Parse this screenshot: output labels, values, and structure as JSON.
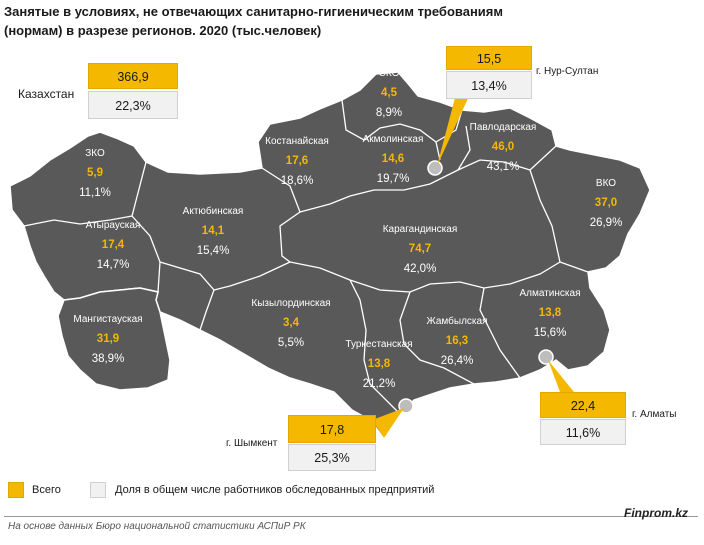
{
  "title": "Занятые в условиях, не отвечающих санитарно-гигиеническим требованиям (нормам) в разрезе регионов. 2020 (тыс.человек)",
  "kazakhstan": {
    "label": "Казахстан",
    "total": "366,9",
    "share": "22,3%"
  },
  "regions": [
    {
      "name": "СКО",
      "total": "4,5",
      "share": "8,9%"
    },
    {
      "name": "Костанайская",
      "total": "17,6",
      "share": "18,6%"
    },
    {
      "name": "Акмолинская",
      "total": "14,6",
      "share": "19,7%"
    },
    {
      "name": "Павлодарская",
      "total": "46,0",
      "share": "43,1%"
    },
    {
      "name": "ЗКО",
      "total": "5,9",
      "share": "11,1%"
    },
    {
      "name": "Актюбинская",
      "total": "14,1",
      "share": "15,4%"
    },
    {
      "name": "Атырауская",
      "total": "17,4",
      "share": "14,7%"
    },
    {
      "name": "ВКО",
      "total": "37,0",
      "share": "26,9%"
    },
    {
      "name": "Карагандинская",
      "total": "74,7",
      "share": "42,0%"
    },
    {
      "name": "Мангистауская",
      "total": "31,9",
      "share": "38,9%"
    },
    {
      "name": "Кызылординская",
      "total": "3,4",
      "share": "5,5%"
    },
    {
      "name": "Алматинская",
      "total": "13,8",
      "share": "15,6%"
    },
    {
      "name": "Жамбылская",
      "total": "16,3",
      "share": "26,4%"
    },
    {
      "name": "Туркестанская",
      "total": "13,8",
      "share": "21,2%"
    }
  ],
  "cities": [
    {
      "name": "г. Нур-Султан",
      "total": "15,5",
      "share": "13,4%"
    },
    {
      "name": "г. Алматы",
      "total": "22,4",
      "share": "11,6%"
    },
    {
      "name": "г. Шымкент",
      "total": "17,8",
      "share": "25,3%"
    }
  ],
  "legend": {
    "total": "Всего",
    "share": "Доля в общем числе работников обследованных предприятий"
  },
  "colors": {
    "map": "#595959",
    "border": "#ffffff",
    "total": "#f5b800",
    "share_box": "#f1f1f1"
  },
  "source": "На основе данных Бюро национальной статистики АСПиР РК",
  "brand": "Finprom.kz"
}
